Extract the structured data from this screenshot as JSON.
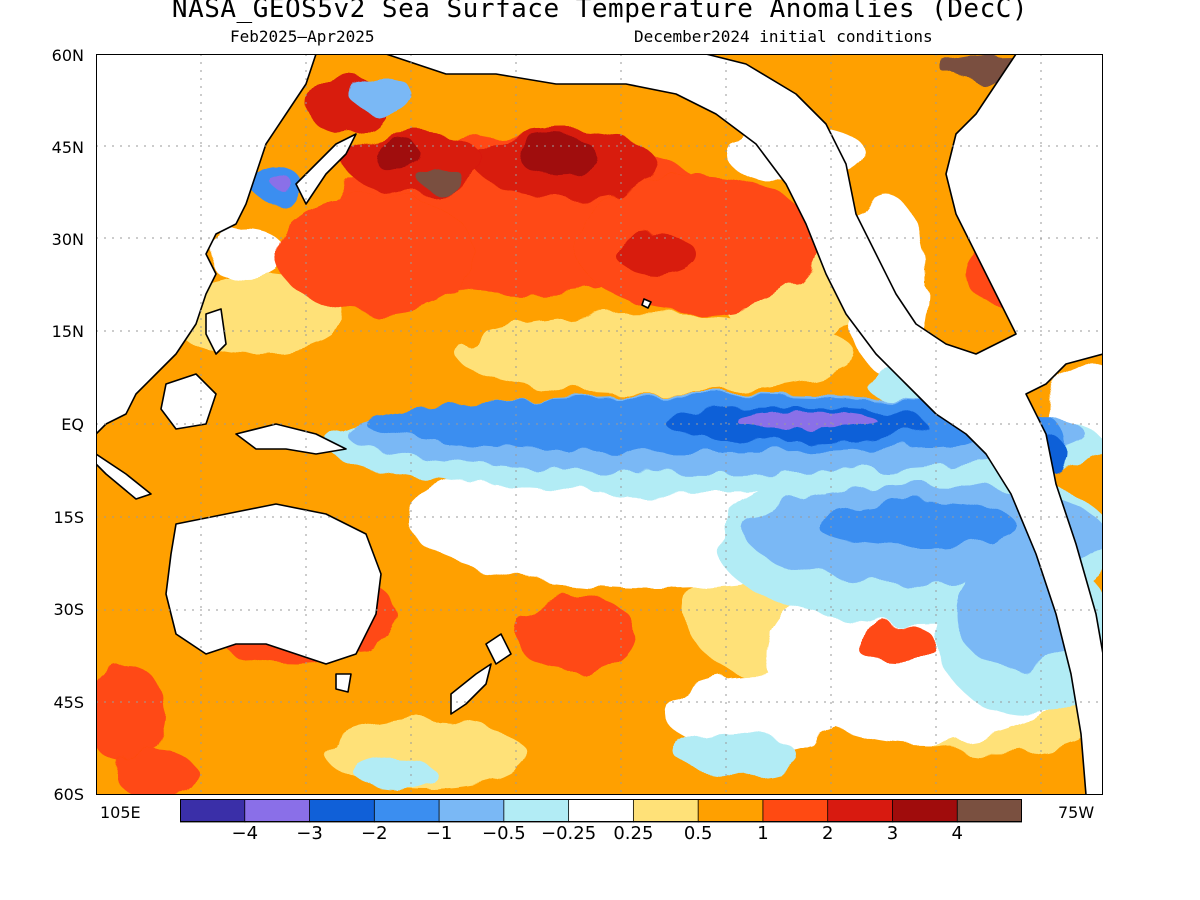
{
  "title": "NASA_GEOS5v2 Sea Surface Temperature Anomalies (DecC)",
  "subtitle_left": "Feb2025–Apr2025",
  "subtitle_right": "December2024 initial conditions",
  "lat_labels": [
    "60N",
    "45N",
    "30N",
    "15N",
    "EQ",
    "15S",
    "30S",
    "45S",
    "60S"
  ],
  "lon_left": "105E",
  "lon_right": "75W",
  "colorbar": {
    "colors": [
      "#3a2fa8",
      "#8a6fe8",
      "#1060d8",
      "#3b8ef0",
      "#7ab8f5",
      "#b2ecf5",
      "#ffffff",
      "#ffe178",
      "#ffa000",
      "#ff4a12",
      "#d81a10",
      "#a00c0c",
      "#7a5040"
    ],
    "labels": [
      "−4",
      "−3",
      "−2",
      "−1",
      "−0.5",
      "−0.25",
      "0.25",
      "0.5",
      "1",
      "2",
      "3",
      "4"
    ]
  },
  "colors": {
    "land": "#ffffff",
    "coast": "#000000",
    "grid": "#9a9a9a",
    "orange": "#ffa000",
    "red": "#ff4a12",
    "darkred": "#d81a10",
    "maroon": "#a00c0c",
    "brown": "#7a5040",
    "yellow": "#ffe178",
    "lightcyan": "#b2ecf5",
    "lightblue": "#7ab8f5",
    "blue": "#3b8ef0",
    "darkblue": "#1060d8",
    "purple": "#8a6fe8"
  }
}
